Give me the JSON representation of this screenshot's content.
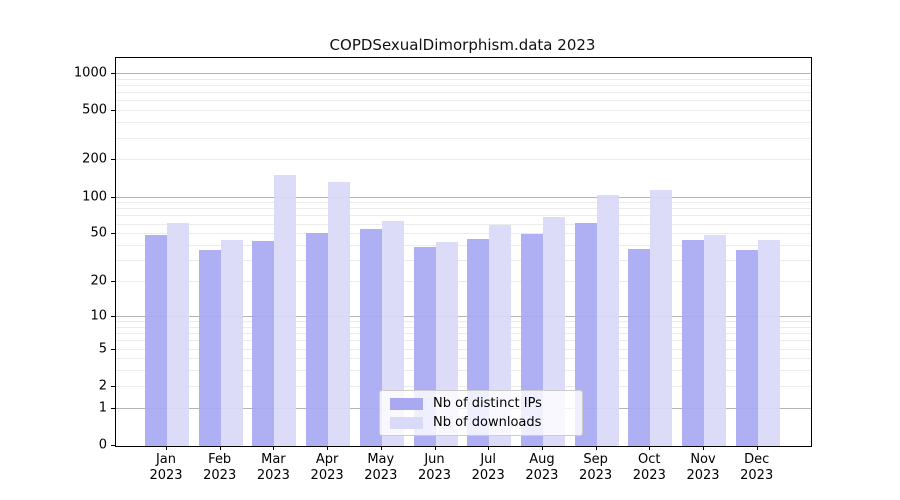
{
  "title": "COPDSexualDimorphism.data 2023",
  "chart_data": {
    "type": "bar",
    "title": "COPDSexualDimorphism.data 2023",
    "categories": [
      "Jan 2023",
      "Feb 2023",
      "Mar 2023",
      "Apr 2023",
      "May 2023",
      "Jun 2023",
      "Jul 2023",
      "Aug 2023",
      "Sep 2023",
      "Oct 2023",
      "Nov 2023",
      "Dec 2023"
    ],
    "month_labels": [
      "Jan",
      "Feb",
      "Mar",
      "Apr",
      "May",
      "Jun",
      "Jul",
      "Aug",
      "Sep",
      "Oct",
      "Nov",
      "Dec"
    ],
    "year_label": "2023",
    "series": [
      {
        "name": "Nb of distinct IPs",
        "color": "#a9a9f2",
        "values": [
          49,
          37,
          44,
          51,
          55,
          39,
          46,
          50,
          62,
          38,
          45,
          37
        ]
      },
      {
        "name": "Nb of downloads",
        "color": "#d9d9f8",
        "values": [
          62,
          45,
          152,
          133,
          64,
          43,
          60,
          69,
          105,
          116,
          49,
          45
        ]
      }
    ],
    "ylabel": "",
    "xlabel": "",
    "y_axis": {
      "scale": "log1p",
      "tick_labels": [
        "1000",
        "500",
        "200",
        "100",
        "50",
        "20",
        "10",
        "5",
        "2",
        "1",
        "0"
      ],
      "tick_values": [
        1000,
        500,
        200,
        100,
        50,
        20,
        10,
        5,
        2,
        1,
        0
      ],
      "ylim": [
        0,
        1070
      ]
    },
    "grid": "on",
    "legend_position": "bottom-center"
  },
  "legend": {
    "items": [
      {
        "label": "Nb of distinct IPs",
        "swatch_color": "#a9a9f2"
      },
      {
        "label": "Nb of downloads",
        "swatch_color": "#d9d9f8"
      }
    ]
  },
  "colors": {
    "bar_distinct_ips": "#a9a9f2",
    "bar_downloads": "#d9d9f8",
    "grid_major": "#b3b3b3",
    "grid_minor": "#ebebeb",
    "axis_spine": "#000000",
    "background": "#ffffff"
  }
}
